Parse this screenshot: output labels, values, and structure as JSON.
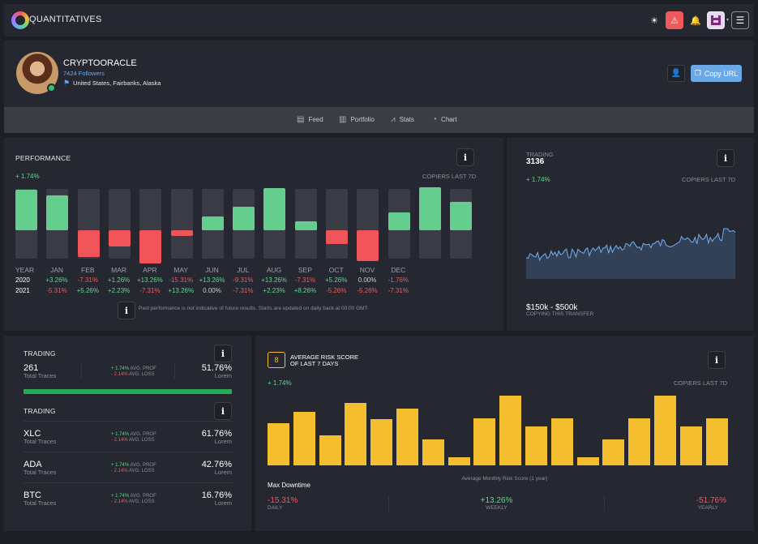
{
  "app": {
    "name": "QUANTITATIVES",
    "accent": "#6aa8e8"
  },
  "topbar": {
    "icons": [
      "sun-icon",
      "alert-icon",
      "bell-icon",
      "avatar-icon",
      "menu-icon"
    ],
    "alert_color": "#f0595c"
  },
  "profile": {
    "name": "CRYPTOORACLE",
    "followers": "7424 Followers",
    "location": "United States, Fairbanks, Alaska",
    "copy_url_label": "Copy URL"
  },
  "tabs": [
    {
      "label": "Feed",
      "icon": "feed-icon"
    },
    {
      "label": "Portfolio",
      "icon": "portfolio-icon"
    },
    {
      "label": "Stats",
      "icon": "stats-icon"
    },
    {
      "label": "Chart",
      "icon": "pie-chart-icon"
    }
  ],
  "performance": {
    "title": "PERFORMANCE",
    "change": "+ 1.74%",
    "copiers_label": "COPIERS LAST 7D",
    "disclaimer": "Past performance is not indicative of future results. Starts are updated on daily back at 00:00 GMT.",
    "year_label": "YEAR",
    "months": [
      "JAN",
      "FEB",
      "MAR",
      "APR",
      "MAY",
      "JUN",
      "JUL",
      "AUG",
      "SEP",
      "OCT",
      "NOV",
      "DEC"
    ],
    "rows": [
      {
        "year": "2020",
        "values": [
          "+3.26%",
          "-7.31%",
          "+1.26%",
          "+13.26%",
          "-15.31%",
          "+13.26%",
          "-9.31%",
          "+13.26%",
          "-7.31%",
          "+5.26%",
          "0.00%",
          "-1.76%"
        ]
      },
      {
        "year": "2021",
        "values": [
          "-5.31%",
          "+5.26%",
          "+2.23%",
          "-7.31%",
          "+13.26%",
          "0.00%",
          "-7.31%",
          "+2.23%",
          "+8.26%",
          "-5.26%",
          "-5.26%",
          "-7.31%"
        ]
      }
    ],
    "bars": [
      {
        "value": 1.0,
        "color": "#65ce8f"
      },
      {
        "value": 0.86,
        "color": "#65ce8f"
      },
      {
        "value": -0.66,
        "color": "#ef5558"
      },
      {
        "value": -0.4,
        "color": "#ef5558"
      },
      {
        "value": -0.82,
        "color": "#ef5558"
      },
      {
        "value": -0.14,
        "color": "#ef5558"
      },
      {
        "value": 0.34,
        "color": "#65ce8f"
      },
      {
        "value": 0.58,
        "color": "#65ce8f"
      },
      {
        "value": 1.04,
        "color": "#65ce8f"
      },
      {
        "value": 0.22,
        "color": "#65ce8f"
      },
      {
        "value": -0.34,
        "color": "#ef5558"
      },
      {
        "value": -0.76,
        "color": "#ef5558"
      },
      {
        "value": 0.44,
        "color": "#65ce8f"
      },
      {
        "value": 1.06,
        "color": "#65ce8f"
      },
      {
        "value": 0.7,
        "color": "#65ce8f"
      }
    ]
  },
  "trading": {
    "label": "TRADING",
    "count": "3136",
    "change": "+ 1.74%",
    "copiers_label": "COPIERS LAST 7D",
    "range": "$150k - $500k",
    "range_sub": "COPYING THIS TRANSFER",
    "line_color": "#6aa8e8"
  },
  "trading_top": {
    "title": "TRADING",
    "name": "261",
    "sub": "Total Traces",
    "avg_prof": "+ 1.74%",
    "avg_prof_label": "AVG. PROF",
    "avg_loss": "- 2.14%",
    "avg_loss_label": "AVG. LOSS",
    "value": "51.76%",
    "value_sub": "Lorem",
    "progress": 1.0,
    "progress_color": "#27a955"
  },
  "trading_list": {
    "title": "TRADING",
    "items": [
      {
        "name": "XLC",
        "sub": "Total Traces",
        "avg_prof": "+ 1.74%",
        "avg_prof_label": "AVG. PROF",
        "avg_loss": "- 2.14%",
        "avg_loss_label": "AVG. LOSS",
        "value": "61.76%",
        "value_sub": "Lorem"
      },
      {
        "name": "ADA",
        "sub": "Total Traces",
        "avg_prof": "+ 1.74%",
        "avg_prof_label": "AVG. PROF",
        "avg_loss": "- 2.14%",
        "avg_loss_label": "AVG. LOSS",
        "value": "42.76%",
        "value_sub": "Lorem"
      },
      {
        "name": "BTC",
        "sub": "Total Traces",
        "avg_prof": "+ 1.74%",
        "avg_prof_label": "AVG. PROF",
        "avg_loss": "- 2.14%",
        "avg_loss_label": "AVG. LOSS",
        "value": "16.76%",
        "value_sub": "Lorem"
      }
    ]
  },
  "risk": {
    "badge": "8",
    "title_line1": "AVERAGE RISK SCORE",
    "title_line2": "OF LAST 7 DAYS",
    "change": "+ 1.74%",
    "copiers_label": "COPIERS LAST 7D",
    "chart_label": "Average Monthly Risk Score (1 year)",
    "max_downtime_label": "Max Downtime",
    "bar_color": "#f5be2f",
    "bars": [
      0.6,
      0.77,
      0.43,
      0.9,
      0.66,
      0.81,
      0.37,
      0.12,
      0.67,
      1.0,
      0.56,
      0.67,
      0.12,
      0.37,
      0.67,
      1.0,
      0.56,
      0.67
    ],
    "stats": [
      {
        "value": "-15.31%",
        "label": "DAILY",
        "color": "#f0595c"
      },
      {
        "value": "+13.26%",
        "label": "WEEKLY",
        "color": "#5fd68d"
      },
      {
        "value": "-51.76%",
        "label": "YEARLY",
        "color": "#f0595c"
      }
    ]
  }
}
